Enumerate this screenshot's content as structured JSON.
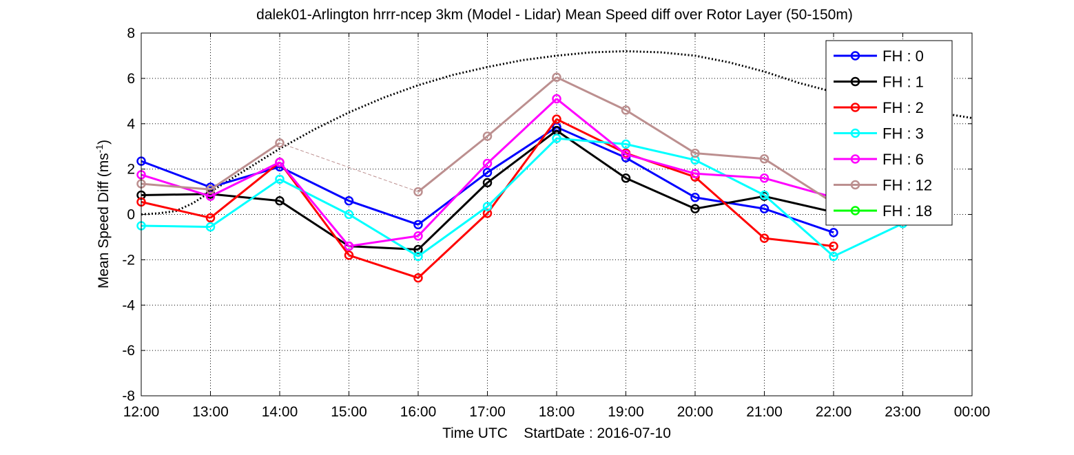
{
  "chart_data": {
    "type": "line",
    "title": "dalek01-Arlington hrrr-ncep 3km (Model - Lidar) Mean Speed diff over Rotor Layer (50-150m)",
    "xlabel": "Time UTC    StartDate : 2016-07-10",
    "ylabel": "Mean Speed Diff (ms",
    "ylabel_sup": "-1",
    "ylabel_end": ")",
    "categories": [
      "12:00",
      "13:00",
      "14:00",
      "15:00",
      "16:00",
      "17:00",
      "18:00",
      "19:00",
      "20:00",
      "21:00",
      "22:00",
      "23:00",
      "00:00"
    ],
    "yticks": [
      "8",
      "6",
      "4",
      "2",
      "0",
      "-2",
      "-4",
      "-6",
      "-8"
    ],
    "ylim": [
      -8,
      8
    ],
    "grid": true,
    "legend_position": "top-right",
    "series": [
      {
        "name": "FH : 0",
        "color": "#0000ff",
        "values": [
          2.35,
          1.2,
          2.1,
          0.6,
          -0.45,
          1.85,
          3.85,
          2.5,
          0.75,
          0.25,
          -0.8,
          null,
          null
        ]
      },
      {
        "name": "FH : 1",
        "color": "#000000",
        "values": [
          0.85,
          0.9,
          0.6,
          -1.4,
          -1.55,
          1.4,
          3.7,
          1.6,
          0.25,
          0.8,
          0.1,
          null,
          null
        ]
      },
      {
        "name": "FH : 2",
        "color": "#ff0000",
        "values": [
          0.55,
          -0.15,
          2.3,
          -1.8,
          -2.8,
          0.05,
          4.2,
          2.7,
          1.65,
          -1.05,
          -1.4,
          null,
          null
        ]
      },
      {
        "name": "FH : 3",
        "color": "#00ffff",
        "values": [
          -0.5,
          -0.55,
          1.55,
          0.0,
          -1.85,
          0.35,
          3.35,
          3.1,
          2.4,
          0.85,
          -1.85,
          -0.4,
          null
        ]
      },
      {
        "name": "FH : 6",
        "color": "#ff00ff",
        "values": [
          1.75,
          0.8,
          2.3,
          -1.4,
          -0.95,
          2.25,
          5.1,
          2.65,
          1.8,
          1.6,
          0.75,
          null,
          null
        ]
      },
      {
        "name": "FH : 12",
        "color": "#bc8f8f",
        "values": [
          1.35,
          1.1,
          3.15,
          null,
          1.0,
          3.45,
          6.05,
          4.6,
          2.7,
          2.45,
          0.5,
          null,
          null
        ],
        "gap_dashed": true
      },
      {
        "name": "FH : 18",
        "color": "#00ff00",
        "values": [
          null,
          null,
          null,
          null,
          null,
          null,
          null,
          null,
          null,
          null,
          null,
          null,
          null
        ]
      }
    ],
    "reference_curve": {
      "style": "dotted",
      "color": "#000000",
      "x": [
        0,
        0.25,
        0.5,
        0.75,
        1,
        1.5,
        2,
        2.5,
        3,
        3.5,
        4,
        4.5,
        5,
        5.5,
        6,
        6.5,
        7,
        7.5,
        8,
        8.5,
        9,
        9.5,
        10,
        10.5,
        11,
        11.5,
        12
      ],
      "values": [
        0,
        0.05,
        0.15,
        0.5,
        1.0,
        1.95,
        2.9,
        3.75,
        4.5,
        5.15,
        5.7,
        6.15,
        6.5,
        6.8,
        7.0,
        7.15,
        7.2,
        7.15,
        7.0,
        6.7,
        6.3,
        5.8,
        5.4,
        5.05,
        4.75,
        4.5,
        4.25
      ]
    }
  }
}
